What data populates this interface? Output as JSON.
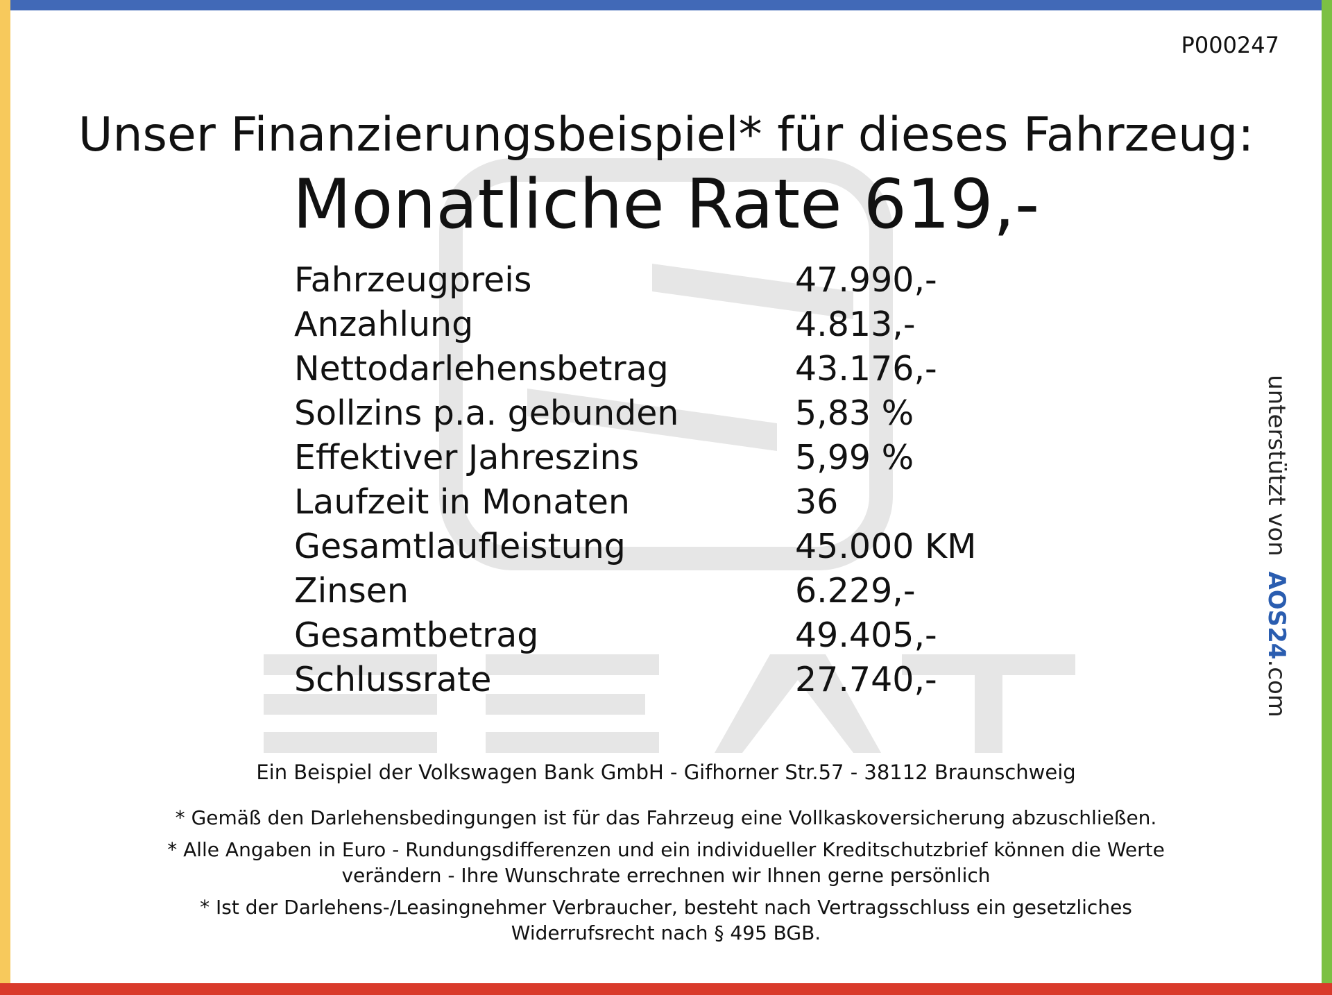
{
  "header": {
    "id": "P000247",
    "title": "Unser Finanzierungsbeispiel* für dieses Fahrzeug:",
    "rate": "Monatliche Rate 619,-"
  },
  "table": {
    "rows": [
      [
        "Fahrzeugpreis",
        "47.990,-"
      ],
      [
        "Anzahlung",
        "4.813,-"
      ],
      [
        "Nettodarlehensbetrag",
        "43.176,-"
      ],
      [
        "Sollzins p.a. gebunden",
        "5,83 %"
      ],
      [
        "Effektiver Jahreszins",
        "5,99 %"
      ],
      [
        "Laufzeit in Monaten",
        "36"
      ],
      [
        "Gesamtlaufleistung",
        "45.000 KM"
      ],
      [
        "Zinsen",
        "6.229,-"
      ],
      [
        "Gesamtbetrag",
        "49.405,-"
      ],
      [
        "Schlussrate",
        "27.740,-"
      ]
    ]
  },
  "footer": {
    "lender": "Ein Beispiel der Volkswagen Bank GmbH - Gifhorner Str.57 - 38112 Braunschweig",
    "notes": [
      [
        "* Gemäß den Darlehensbedingungen ist für das Fahrzeug eine Vollkaskoversicherung abzuschließen."
      ],
      [
        "* Alle Angaben in Euro - Rundungsdifferenzen und ein individueller Kreditschutzbrief können die Werte",
        "verändern - Ihre Wunschrate errechnen wir Ihnen gerne persönlich"
      ],
      [
        "* Ist der Darlehens-/Leasingnehmer Verbraucher, besteht nach Vertragsschluss ein gesetzliches",
        "Widerrufsrecht nach § 495 BGB."
      ]
    ]
  },
  "sidebar": {
    "prefix": "unterstützt von",
    "brand": "AOS24",
    "suffix": ".com"
  }
}
